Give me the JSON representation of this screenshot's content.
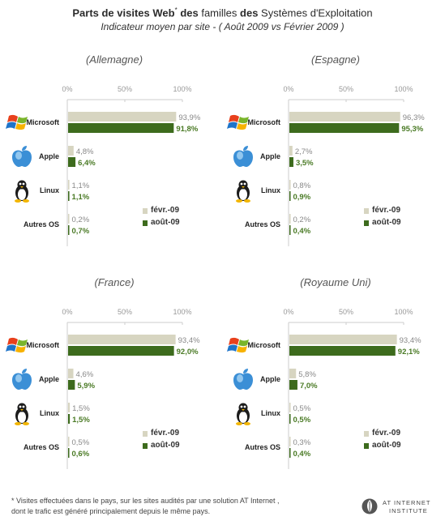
{
  "title": {
    "line1_bold1": "Parts de visites Web",
    "line1_star": "*",
    "line1_mid": " des ",
    "line1_norm1": "familles",
    "line1_bold2": " des ",
    "line1_norm2": "Systèmes d'Exploitation",
    "line2": "Indicateur moyen par site -  ( Août 2009 vs Février 2009 )"
  },
  "colors": {
    "feb": "#d7d5c1",
    "aug": "#3d6b1d",
    "value_green": "#4a7a25",
    "value_grey": "#888888",
    "axis": "#cccccc"
  },
  "os_icons": [
    "windows-icon",
    "apple-icon",
    "linux-icon",
    "none"
  ],
  "chart_data": [
    {
      "type": "bar",
      "title": "(Allemagne)",
      "categories": [
        "Microsoft",
        "Apple",
        "Linux",
        "Autres OS"
      ],
      "tick_labels": [
        "0%",
        "50%",
        "100%"
      ],
      "xlim": [
        0,
        100
      ],
      "series": [
        {
          "name": "févr.-09",
          "values": [
            93.9,
            4.8,
            1.1,
            0.2
          ],
          "labels": [
            "93,9%",
            "4,8%",
            "1,1%",
            "0,2%"
          ]
        },
        {
          "name": "août-09",
          "values": [
            91.8,
            6.4,
            1.1,
            0.7
          ],
          "labels": [
            "91,8%",
            "6,4%",
            "1,1%",
            "0,7%"
          ]
        }
      ]
    },
    {
      "type": "bar",
      "title": "(Espagne)",
      "categories": [
        "Microsoft",
        "Apple",
        "Linux",
        "Autres OS"
      ],
      "tick_labels": [
        "0%",
        "50%",
        "100%"
      ],
      "xlim": [
        0,
        100
      ],
      "series": [
        {
          "name": "févr.-09",
          "values": [
            96.3,
            2.7,
            0.8,
            0.2
          ],
          "labels": [
            "96,3%",
            "2,7%",
            "0,8%",
            "0,2%"
          ]
        },
        {
          "name": "août-09",
          "values": [
            95.3,
            3.5,
            0.9,
            0.4
          ],
          "labels": [
            "95,3%",
            "3,5%",
            "0,9%",
            "0,4%"
          ]
        }
      ]
    },
    {
      "type": "bar",
      "title": "(France)",
      "categories": [
        "Microsoft",
        "Apple",
        "Linux",
        "Autres OS"
      ],
      "tick_labels": [
        "0%",
        "50%",
        "100%"
      ],
      "xlim": [
        0,
        100
      ],
      "series": [
        {
          "name": "févr.-09",
          "values": [
            93.4,
            4.6,
            1.5,
            0.5
          ],
          "labels": [
            "93,4%",
            "4,6%",
            "1,5%",
            "0,5%"
          ]
        },
        {
          "name": "août-09",
          "values": [
            92.0,
            5.9,
            1.5,
            0.6
          ],
          "labels": [
            "92,0%",
            "5,9%",
            "1,5%",
            "0,6%"
          ]
        }
      ]
    },
    {
      "type": "bar",
      "title": "(Royaume Uni)",
      "categories": [
        "Microsoft",
        "Apple",
        "Linux",
        "Autres OS"
      ],
      "tick_labels": [
        "0%",
        "50%",
        "100%"
      ],
      "xlim": [
        0,
        100
      ],
      "series": [
        {
          "name": "févr.-09",
          "values": [
            93.4,
            5.8,
            0.5,
            0.3
          ],
          "labels": [
            "93,4%",
            "5,8%",
            "0,5%",
            "0,3%"
          ]
        },
        {
          "name": "août-09",
          "values": [
            92.1,
            7.0,
            0.5,
            0.4
          ],
          "labels": [
            "92,1%",
            "7,0%",
            "0,5%",
            "0,4%"
          ]
        }
      ]
    }
  ],
  "footnote": {
    "line1": "* Visites effectuées dans le pays, sur les sites audités par une solution AT Internet ,",
    "line2": "dont le trafic est généré principalement depuis le même pays."
  },
  "logo": {
    "line1": "AT INTERNET",
    "line2": "INSTITUTE"
  }
}
